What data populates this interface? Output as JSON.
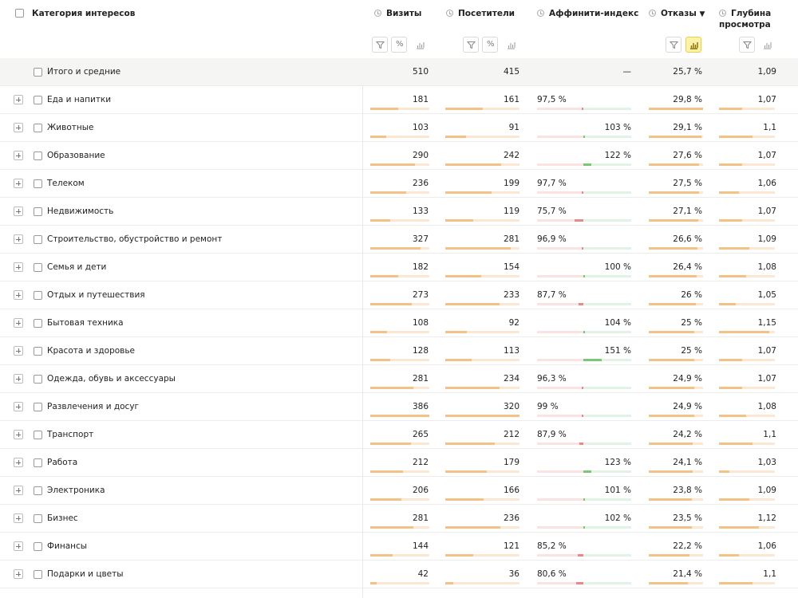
{
  "header": {
    "category": "Категория интересов",
    "visits": "Визиты",
    "visitors": "Посетители",
    "affinity": "Аффинити-индекс",
    "bounces": "Отказы",
    "sort_arrow": "▼",
    "depth_line1": "Глубина",
    "depth_line2": "просмотра",
    "percent_btn": "%"
  },
  "totals": {
    "label": "Итого и средние",
    "visits": "510",
    "visitors": "415",
    "affinity": "—",
    "bounces": "25,7 %",
    "depth": "1,09"
  },
  "max": {
    "visits": 386,
    "visitors": 320,
    "bounces": 29.8
  },
  "colors": {
    "bar": "#f4c287",
    "bar_track": "#fbe7d2",
    "aff_pos": "#78c878",
    "aff_neg": "#e98a8a"
  },
  "rows": [
    {
      "label": "Еда и напитки",
      "visits": "181",
      "visitors": "161",
      "affinity": "97,5 %",
      "aff": 97.5,
      "bounces": "29,8 %",
      "depth": "1,07"
    },
    {
      "label": "Животные",
      "visits": "103",
      "visitors": "91",
      "affinity": "103 %",
      "aff": 103,
      "bounces": "29,1 %",
      "depth": "1,1"
    },
    {
      "label": "Образование",
      "visits": "290",
      "visitors": "242",
      "affinity": "122 %",
      "aff": 122,
      "bounces": "27,6 %",
      "depth": "1,07"
    },
    {
      "label": "Телеком",
      "visits": "236",
      "visitors": "199",
      "affinity": "97,7 %",
      "aff": 97.7,
      "bounces": "27,5 %",
      "depth": "1,06"
    },
    {
      "label": "Недвижимость",
      "visits": "133",
      "visitors": "119",
      "affinity": "75,7 %",
      "aff": 75.7,
      "bounces": "27,1 %",
      "depth": "1,07"
    },
    {
      "label": "Строительство, обустройство и ремонт",
      "visits": "327",
      "visitors": "281",
      "affinity": "96,9 %",
      "aff": 96.9,
      "bounces": "26,6 %",
      "depth": "1,09"
    },
    {
      "label": "Семья и дети",
      "visits": "182",
      "visitors": "154",
      "affinity": "100 %",
      "aff": 100,
      "bounces": "26,4 %",
      "depth": "1,08"
    },
    {
      "label": "Отдых и путешествия",
      "visits": "273",
      "visitors": "233",
      "affinity": "87,7 %",
      "aff": 87.7,
      "bounces": "26 %",
      "depth": "1,05"
    },
    {
      "label": "Бытовая техника",
      "visits": "108",
      "visitors": "92",
      "affinity": "104 %",
      "aff": 104,
      "bounces": "25 %",
      "depth": "1,15"
    },
    {
      "label": "Красота и здоровье",
      "visits": "128",
      "visitors": "113",
      "affinity": "151 %",
      "aff": 151,
      "bounces": "25 %",
      "depth": "1,07"
    },
    {
      "label": "Одежда, обувь и аксессуары",
      "visits": "281",
      "visitors": "234",
      "affinity": "96,3 %",
      "aff": 96.3,
      "bounces": "24,9 %",
      "depth": "1,07"
    },
    {
      "label": "Развлечения и досуг",
      "visits": "386",
      "visitors": "320",
      "affinity": "99 %",
      "aff": 99,
      "bounces": "24,9 %",
      "depth": "1,08"
    },
    {
      "label": "Транспорт",
      "visits": "265",
      "visitors": "212",
      "affinity": "87,9 %",
      "aff": 87.9,
      "bounces": "24,2 %",
      "depth": "1,1"
    },
    {
      "label": "Работа",
      "visits": "212",
      "visitors": "179",
      "affinity": "123 %",
      "aff": 123,
      "bounces": "24,1 %",
      "depth": "1,03"
    },
    {
      "label": "Электроника",
      "visits": "206",
      "visitors": "166",
      "affinity": "101 %",
      "aff": 101,
      "bounces": "23,8 %",
      "depth": "1,09"
    },
    {
      "label": "Бизнес",
      "visits": "281",
      "visitors": "236",
      "affinity": "102 %",
      "aff": 102,
      "bounces": "23,5 %",
      "depth": "1,12"
    },
    {
      "label": "Финансы",
      "visits": "144",
      "visitors": "121",
      "affinity": "85,2 %",
      "aff": 85.2,
      "bounces": "22,2 %",
      "depth": "1,06"
    },
    {
      "label": "Подарки и цветы",
      "visits": "42",
      "visitors": "36",
      "affinity": "80,6 %",
      "aff": 80.6,
      "bounces": "21,4 %",
      "depth": "1,1"
    }
  ]
}
